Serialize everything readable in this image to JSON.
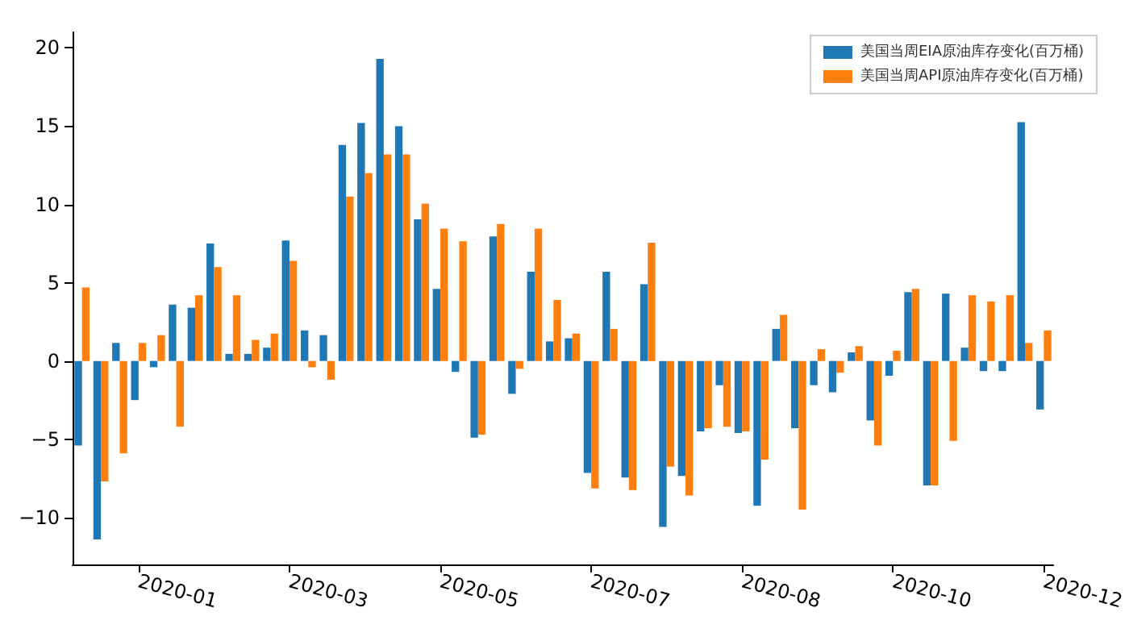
{
  "chart_data": {
    "type": "bar",
    "categories": [
      null,
      null,
      null,
      "2020-01",
      null,
      null,
      null,
      null,
      null,
      null,
      null,
      "2020-03",
      null,
      null,
      null,
      null,
      null,
      null,
      null,
      "2020-05",
      null,
      null,
      null,
      null,
      null,
      null,
      null,
      "2020-07",
      null,
      null,
      null,
      null,
      null,
      null,
      null,
      "2020-08",
      null,
      null,
      null,
      null,
      null,
      null,
      null,
      "2020-10",
      null,
      null,
      null,
      null,
      null,
      null,
      null,
      "2020-12"
    ],
    "series": [
      {
        "name": "美国当周EIA原油库存变化(百万桶)",
        "color": "#1f77b4",
        "values": [
          -5.4,
          -11.4,
          1.15,
          -2.5,
          -0.4,
          3.6,
          3.4,
          7.5,
          0.45,
          0.45,
          0.85,
          7.7,
          1.95,
          1.65,
          13.8,
          15.2,
          19.3,
          15.0,
          9.05,
          4.6,
          -0.7,
          -4.9,
          7.95,
          -2.1,
          5.7,
          1.25,
          1.45,
          -7.15,
          5.7,
          -7.45,
          4.9,
          -10.6,
          -7.35,
          -4.5,
          -1.55,
          -4.6,
          -9.25,
          2.05,
          -4.3,
          -1.55,
          -2.0,
          0.55,
          -3.8,
          -0.95,
          4.4,
          -7.95,
          4.3,
          0.85,
          -0.65,
          -0.65,
          15.25,
          -3.1
        ]
      },
      {
        "name": "美国当周API原油库存变化(百万桶)",
        "color": "#ff7f0e",
        "values": [
          4.7,
          -7.7,
          -5.9,
          1.15,
          1.65,
          -4.2,
          4.2,
          6.0,
          4.2,
          1.35,
          1.75,
          6.4,
          -0.4,
          -1.2,
          10.5,
          12.0,
          13.2,
          13.2,
          10.05,
          8.45,
          7.65,
          -4.7,
          8.75,
          -0.5,
          8.45,
          3.9,
          1.75,
          -8.15,
          2.05,
          -8.25,
          7.55,
          -6.75,
          -8.6,
          -4.3,
          -4.2,
          -4.5,
          -6.3,
          2.95,
          -9.5,
          0.75,
          -0.75,
          0.95,
          -5.4,
          0.65,
          4.6,
          -7.95,
          -5.1,
          4.2,
          3.8,
          4.2,
          1.15,
          1.95
        ]
      }
    ],
    "ylim": [
      -13,
      21
    ],
    "yticks": [
      -10,
      -5,
      0,
      5,
      10,
      15,
      20
    ],
    "grid": false,
    "legend": "top right"
  }
}
